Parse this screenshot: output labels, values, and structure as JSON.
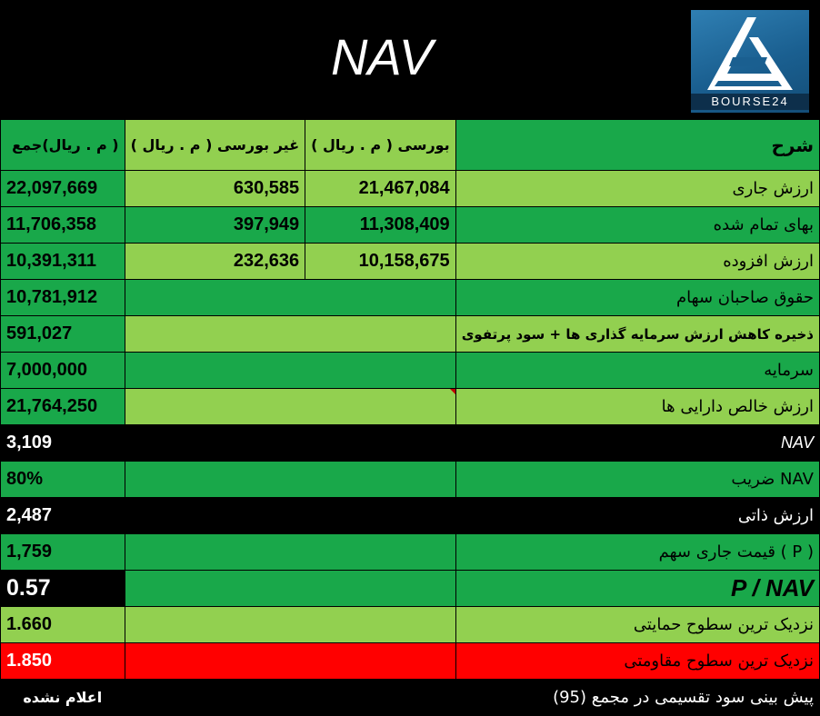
{
  "title": "NAV",
  "logo_text": "BOURSE24",
  "header": {
    "desc": "شرح",
    "bourse": "بورسی ( م . ریال )",
    "non_bourse": "غیر بورسی ( م . ریال )",
    "total": "( م . ریال)جمع"
  },
  "rows": [
    {
      "desc": "ارزش جاری",
      "bourse": "21,467,084",
      "non_bourse": "630,585",
      "total": "22,097,669"
    },
    {
      "desc": "بهای تمام شده",
      "bourse": "11,308,409",
      "non_bourse": "397,949",
      "total": "11,706,358"
    },
    {
      "desc": "ارزش افزوده",
      "bourse": "10,158,675",
      "non_bourse": "232,636",
      "total": "10,391,311"
    },
    {
      "desc": "حقوق صاحبان سهام",
      "total": "10,781,912"
    },
    {
      "desc": "ذخیره کاهش ارزش سرمایه گذاری ها + سود پرتفوی",
      "total": "591,027"
    },
    {
      "desc": "سرمایه",
      "total": "7,000,000"
    },
    {
      "desc": "ارزش خالص دارایی ها",
      "total": "21,764,250"
    },
    {
      "desc": "NAV",
      "total": "3,109"
    },
    {
      "desc": "NAV ضریب",
      "total": "80%"
    },
    {
      "desc": "ارزش ذاتی",
      "total": "2,487"
    },
    {
      "desc": "( P ) قیمت جاری سهم",
      "total": "1,759"
    },
    {
      "desc": "P / NAV",
      "total": "0.57"
    },
    {
      "desc": "نزدیک ترین سطوح حمایتی",
      "total": "1.660"
    },
    {
      "desc": "نزدیک ترین سطوح مقاومتی",
      "total": "1.850"
    },
    {
      "desc": "پیش بینی سود تقسیمی در مجمع (95)",
      "total": "اعلام نشده"
    }
  ],
  "colors": {
    "green": "#19a84a",
    "light_green": "#92d050",
    "red": "#ff0000",
    "black": "#000000"
  }
}
